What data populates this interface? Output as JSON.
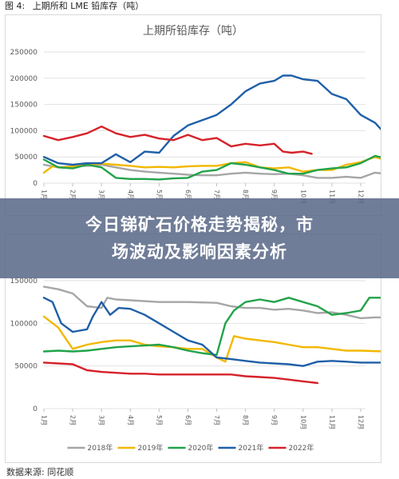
{
  "figure": {
    "label": "图 4:",
    "title": "上期所和 LME 铅库存（吨）"
  },
  "banner": {
    "line1": "今日锑矿石价格走势揭秘，市",
    "line2": "场波动及影响因素分析"
  },
  "source": {
    "prefix": "数据来源:",
    "name": "同花顺"
  },
  "chart_data": [
    {
      "type": "line",
      "title": "上期所铅库存（吨）",
      "ylim": [
        0,
        250000
      ],
      "yticks": [
        0,
        50000,
        100000,
        150000,
        200000,
        250000
      ],
      "xticks": [
        "1月",
        "2月",
        "3月",
        "4月",
        "5月",
        "6月",
        "7月",
        "8月",
        "9月",
        "10月",
        "11月",
        "12月"
      ],
      "grid": true,
      "series": [
        {
          "color": "#a6a6a6",
          "points": [
            [
              1,
              35000
            ],
            [
              1.5,
              30000
            ],
            [
              2,
              32000
            ],
            [
              2.5,
              33000
            ],
            [
              3,
              35000
            ],
            [
              3.5,
              30000
            ],
            [
              4,
              25000
            ],
            [
              4.5,
              22000
            ],
            [
              5,
              20000
            ],
            [
              5.5,
              18000
            ],
            [
              6,
              16000
            ],
            [
              6.5,
              15000
            ],
            [
              7,
              15000
            ],
            [
              7.5,
              18000
            ],
            [
              8,
              20000
            ],
            [
              8.5,
              18000
            ],
            [
              9,
              17000
            ],
            [
              9.5,
              18000
            ],
            [
              10,
              15000
            ],
            [
              10.5,
              10000
            ],
            [
              11,
              10000
            ],
            [
              11.5,
              12000
            ],
            [
              12,
              10000
            ],
            [
              12.5,
              20000
            ],
            [
              12.8,
              18000
            ]
          ]
        },
        {
          "color": "#f2b800",
          "points": [
            [
              1,
              20000
            ],
            [
              1.3,
              32000
            ],
            [
              1.6,
              30000
            ],
            [
              2,
              32000
            ],
            [
              2.5,
              35000
            ],
            [
              3,
              37000
            ],
            [
              3.5,
              35000
            ],
            [
              4,
              33000
            ],
            [
              4.5,
              30000
            ],
            [
              5,
              31000
            ],
            [
              5.5,
              30000
            ],
            [
              6,
              32000
            ],
            [
              6.5,
              33000
            ],
            [
              7,
              33000
            ],
            [
              7.5,
              38000
            ],
            [
              8,
              40000
            ],
            [
              8.5,
              30000
            ],
            [
              9,
              28000
            ],
            [
              9.5,
              30000
            ],
            [
              10,
              22000
            ],
            [
              10.5,
              25000
            ],
            [
              11,
              25000
            ],
            [
              11.5,
              35000
            ],
            [
              12,
              40000
            ],
            [
              12.5,
              50000
            ],
            [
              12.8,
              45000
            ]
          ]
        },
        {
          "color": "#22a34a",
          "points": [
            [
              1,
              45000
            ],
            [
              1.5,
              30000
            ],
            [
              2,
              28000
            ],
            [
              2.5,
              35000
            ],
            [
              3,
              30000
            ],
            [
              3.5,
              10000
            ],
            [
              4,
              8000
            ],
            [
              4.5,
              8000
            ],
            [
              5,
              7000
            ],
            [
              5.5,
              9000
            ],
            [
              6,
              10000
            ],
            [
              6.5,
              22000
            ],
            [
              7,
              25000
            ],
            [
              7.5,
              38000
            ],
            [
              8,
              35000
            ],
            [
              8.5,
              30000
            ],
            [
              9,
              25000
            ],
            [
              9.5,
              18000
            ],
            [
              10,
              18000
            ],
            [
              10.5,
              25000
            ],
            [
              11,
              28000
            ],
            [
              11.5,
              30000
            ],
            [
              12,
              38000
            ],
            [
              12.5,
              52000
            ],
            [
              12.8,
              48000
            ]
          ]
        },
        {
          "color": "#1f5fa8",
          "points": [
            [
              1,
              50000
            ],
            [
              1.5,
              38000
            ],
            [
              2,
              35000
            ],
            [
              2.5,
              38000
            ],
            [
              3,
              38000
            ],
            [
              3.5,
              55000
            ],
            [
              4,
              40000
            ],
            [
              4.5,
              60000
            ],
            [
              5,
              58000
            ],
            [
              5.5,
              90000
            ],
            [
              6,
              110000
            ],
            [
              6.5,
              120000
            ],
            [
              7,
              130000
            ],
            [
              7.5,
              150000
            ],
            [
              8,
              175000
            ],
            [
              8.5,
              190000
            ],
            [
              9,
              195000
            ],
            [
              9.3,
              205000
            ],
            [
              9.6,
              205000
            ],
            [
              10,
              198000
            ],
            [
              10.5,
              195000
            ],
            [
              11,
              170000
            ],
            [
              11.5,
              160000
            ],
            [
              12,
              130000
            ],
            [
              12.5,
              115000
            ],
            [
              12.8,
              97000
            ]
          ]
        },
        {
          "color": "#d6222a",
          "points": [
            [
              1,
              90000
            ],
            [
              1.5,
              82000
            ],
            [
              2,
              88000
            ],
            [
              2.5,
              95000
            ],
            [
              3,
              108000
            ],
            [
              3.5,
              95000
            ],
            [
              4,
              88000
            ],
            [
              4.5,
              92000
            ],
            [
              5,
              85000
            ],
            [
              5.5,
              82000
            ],
            [
              6,
              92000
            ],
            [
              6.5,
              82000
            ],
            [
              7,
              86000
            ],
            [
              7.5,
              70000
            ],
            [
              8,
              75000
            ],
            [
              8.5,
              72000
            ],
            [
              9,
              75000
            ],
            [
              9.3,
              60000
            ],
            [
              9.6,
              58000
            ],
            [
              10,
              60000
            ],
            [
              10.3,
              56000
            ]
          ]
        }
      ]
    },
    {
      "type": "line",
      "ylim": [
        0,
        150000
      ],
      "yticks": [
        0,
        50000,
        100000,
        150000
      ],
      "xticks": [
        "1月",
        "2月",
        "3月",
        "4月",
        "5月",
        "6月",
        "7月",
        "8月",
        "9月",
        "10月",
        "11月",
        "12月"
      ],
      "grid": true,
      "legend_position": "bottom",
      "series": [
        {
          "name": "2018年",
          "color": "#a6a6a6",
          "points": [
            [
              1,
              143000
            ],
            [
              1.5,
              140000
            ],
            [
              2,
              135000
            ],
            [
              2.5,
              120000
            ],
            [
              3,
              118000
            ],
            [
              3.2,
              130000
            ],
            [
              3.5,
              128000
            ],
            [
              4,
              127000
            ],
            [
              5,
              125000
            ],
            [
              6,
              125000
            ],
            [
              7,
              124000
            ],
            [
              7.5,
              120000
            ],
            [
              8,
              118000
            ],
            [
              8.5,
              118000
            ],
            [
              9,
              116000
            ],
            [
              9.5,
              117000
            ],
            [
              10,
              115000
            ],
            [
              10.5,
              112000
            ],
            [
              11,
              113000
            ],
            [
              11.5,
              110000
            ],
            [
              12,
              106000
            ],
            [
              12.5,
              107000
            ],
            [
              12.8,
              107000
            ]
          ]
        },
        {
          "name": "2019年",
          "color": "#f2b800",
          "points": [
            [
              1,
              108000
            ],
            [
              1.5,
              95000
            ],
            [
              2,
              70000
            ],
            [
              2.5,
              75000
            ],
            [
              3,
              78000
            ],
            [
              3.5,
              80000
            ],
            [
              4,
              80000
            ],
            [
              4.5,
              75000
            ],
            [
              5,
              73000
            ],
            [
              5.5,
              72000
            ],
            [
              6,
              70000
            ],
            [
              6.5,
              70000
            ],
            [
              7,
              60000
            ],
            [
              7.3,
              55000
            ],
            [
              7.6,
              85000
            ],
            [
              8,
              82000
            ],
            [
              8.5,
              80000
            ],
            [
              9,
              78000
            ],
            [
              9.5,
              75000
            ],
            [
              10,
              72000
            ],
            [
              10.5,
              72000
            ],
            [
              11,
              70000
            ],
            [
              11.5,
              68000
            ],
            [
              12,
              68000
            ],
            [
              12.8,
              67000
            ]
          ]
        },
        {
          "name": "2020年",
          "color": "#22a34a",
          "points": [
            [
              1,
              67000
            ],
            [
              1.5,
              68000
            ],
            [
              2,
              67000
            ],
            [
              2.5,
              68000
            ],
            [
              3,
              70000
            ],
            [
              3.5,
              72000
            ],
            [
              4,
              73000
            ],
            [
              4.5,
              74000
            ],
            [
              5,
              75000
            ],
            [
              5.5,
              72000
            ],
            [
              6,
              68000
            ],
            [
              6.5,
              65000
            ],
            [
              7,
              63000
            ],
            [
              7.3,
              100000
            ],
            [
              7.6,
              115000
            ],
            [
              8,
              125000
            ],
            [
              8.5,
              128000
            ],
            [
              9,
              125000
            ],
            [
              9.5,
              130000
            ],
            [
              10,
              125000
            ],
            [
              10.5,
              120000
            ],
            [
              11,
              110000
            ],
            [
              11.5,
              112000
            ],
            [
              12,
              115000
            ],
            [
              12.3,
              130000
            ],
            [
              12.8,
              130000
            ]
          ]
        },
        {
          "name": "2021年",
          "color": "#1f5fa8",
          "points": [
            [
              1,
              130000
            ],
            [
              1.3,
              125000
            ],
            [
              1.6,
              100000
            ],
            [
              2,
              90000
            ],
            [
              2.5,
              93000
            ],
            [
              2.7,
              108000
            ],
            [
              3,
              125000
            ],
            [
              3.3,
              110000
            ],
            [
              3.6,
              118000
            ],
            [
              4,
              117000
            ],
            [
              4.5,
              110000
            ],
            [
              5,
              100000
            ],
            [
              5.5,
              90000
            ],
            [
              6,
              80000
            ],
            [
              6.5,
              75000
            ],
            [
              7,
              60000
            ],
            [
              7.5,
              58000
            ],
            [
              8,
              56000
            ],
            [
              8.5,
              54000
            ],
            [
              9,
              53000
            ],
            [
              9.5,
              52000
            ],
            [
              10,
              50000
            ],
            [
              10.5,
              55000
            ],
            [
              11,
              56000
            ],
            [
              11.5,
              55000
            ],
            [
              12,
              54000
            ],
            [
              12.8,
              54000
            ]
          ]
        },
        {
          "name": "2022年",
          "color": "#d6222a",
          "points": [
            [
              1,
              54000
            ],
            [
              1.5,
              53000
            ],
            [
              2,
              52000
            ],
            [
              2.5,
              45000
            ],
            [
              3,
              43000
            ],
            [
              3.5,
              42000
            ],
            [
              4,
              41000
            ],
            [
              4.5,
              41000
            ],
            [
              5,
              40000
            ],
            [
              5.5,
              40000
            ],
            [
              6,
              40000
            ],
            [
              6.5,
              40000
            ],
            [
              7,
              40000
            ],
            [
              7.5,
              40000
            ],
            [
              8,
              38000
            ],
            [
              8.5,
              37000
            ],
            [
              9,
              36000
            ],
            [
              9.5,
              34000
            ],
            [
              10,
              32000
            ],
            [
              10.5,
              30000
            ]
          ]
        }
      ]
    }
  ]
}
